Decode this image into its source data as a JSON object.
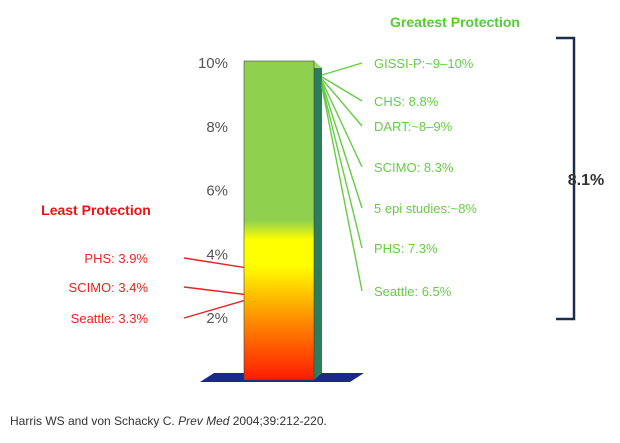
{
  "chart_data": {
    "type": "bar",
    "ylim": [
      0,
      10
    ],
    "yticks": [
      {
        "value": 10,
        "label": "10%"
      },
      {
        "value": 8,
        "label": "8%"
      },
      {
        "value": 6,
        "label": "6%"
      },
      {
        "value": 4,
        "label": "4%"
      },
      {
        "value": 2,
        "label": "2%"
      }
    ],
    "greatest_heading": "Greatest Protection",
    "least_heading": "Least Protection",
    "greatest": [
      {
        "label": "GISSI-P:~9–10%",
        "value": 9.5
      },
      {
        "label": "CHS: 8.8%",
        "value": 8.8
      },
      {
        "label": "DART:~8–9%",
        "value": 8.5
      },
      {
        "label": "SCIMO: 8.3%",
        "value": 8.3
      },
      {
        "label": "5 epi studies:~8%",
        "value": 8.0
      },
      {
        "label": "PHS: 7.3%",
        "value": 7.3
      },
      {
        "label": "Seattle: 6.5%",
        "value": 6.5
      }
    ],
    "least": [
      {
        "label": "PHS: 3.9%",
        "value": 3.9
      },
      {
        "label": "SCIMO: 3.4%",
        "value": 3.4
      },
      {
        "label": "Seattle: 3.3%",
        "value": 3.3
      }
    ],
    "bracket_label": "8.1%"
  },
  "citation": {
    "authors": "Harris WS and von Schacky C. ",
    "journal": "Prev Med",
    "details": " 2004;39:212-220."
  },
  "colors": {
    "bar_top": "#8fd14f",
    "bar_mid": "#ffff00",
    "bar_bottom": "#ff1a00",
    "bar_side": "#2e7d5a",
    "base": "#1a2a8c",
    "greatest": "#66cc44",
    "least": "#ee2222"
  }
}
